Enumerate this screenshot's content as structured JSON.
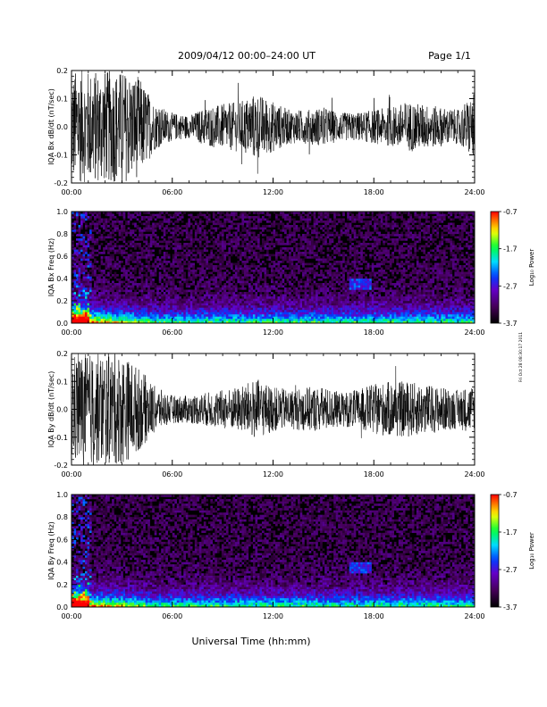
{
  "header": {
    "title": "2009/04/12  00:00–24:00 UT",
    "page": "Page 1/1"
  },
  "xaxis": {
    "label": "Universal Time (hh:mm)",
    "ticks": [
      "00:00",
      "06:00",
      "12:00",
      "18:00",
      "24:00"
    ]
  },
  "side_stamp": "Fri Oct 28 08:30:17 2011",
  "colorbar": {
    "label": "Log₁₀ Power",
    "ticks": [
      "-0.7",
      "-1.7",
      "-2.7",
      "-3.7"
    ]
  },
  "chart_data": [
    {
      "type": "line",
      "ylabel": "IQA Bx dB/dt (nT/sec)",
      "xlim": [
        0,
        24
      ],
      "ylim": [
        -0.2,
        0.2
      ],
      "yticks": [
        "0.2",
        "0.1",
        "0.0",
        "-0.1",
        "-0.2"
      ],
      "amplitude_envelope": {
        "x_hours": [
          0,
          1,
          2,
          3,
          4,
          5,
          6,
          7,
          8,
          9,
          10,
          11,
          12,
          13,
          14,
          15,
          16,
          17,
          18,
          19,
          20,
          21,
          22,
          23,
          24
        ],
        "abs_max": [
          0.2,
          0.2,
          0.2,
          0.2,
          0.18,
          0.08,
          0.05,
          0.04,
          0.07,
          0.08,
          0.09,
          0.12,
          0.09,
          0.06,
          0.06,
          0.07,
          0.05,
          0.05,
          0.06,
          0.07,
          0.09,
          0.08,
          0.07,
          0.06,
          0.12
        ]
      }
    },
    {
      "type": "heatmap",
      "ylabel": "IQA Bx Freq (Hz)",
      "xlim": [
        0,
        24
      ],
      "ylim": [
        0.0,
        1.0
      ],
      "yticks": [
        "1.0",
        "0.8",
        "0.6",
        "0.4",
        "0.2",
        "0.0"
      ],
      "zlim": [
        -3.7,
        -0.7
      ],
      "zlabel": "Log₁₀ Power"
    },
    {
      "type": "line",
      "ylabel": "IQA By dB/dt (nT/sec)",
      "xlim": [
        0,
        24
      ],
      "ylim": [
        -0.2,
        0.2
      ],
      "yticks": [
        "0.2",
        "0.1",
        "0.0",
        "-0.1",
        "-0.2"
      ],
      "amplitude_envelope": {
        "x_hours": [
          0,
          1,
          2,
          3,
          4,
          5,
          6,
          7,
          8,
          9,
          10,
          11,
          12,
          13,
          14,
          15,
          16,
          17,
          18,
          19,
          20,
          21,
          22,
          23,
          24
        ],
        "abs_max": [
          0.2,
          0.2,
          0.2,
          0.2,
          0.15,
          0.08,
          0.05,
          0.05,
          0.06,
          0.07,
          0.08,
          0.11,
          0.08,
          0.07,
          0.08,
          0.08,
          0.06,
          0.07,
          0.09,
          0.1,
          0.1,
          0.09,
          0.08,
          0.07,
          0.09
        ]
      }
    },
    {
      "type": "heatmap",
      "ylabel": "IQA By Freq (Hz)",
      "xlim": [
        0,
        24
      ],
      "ylim": [
        0.0,
        1.0
      ],
      "yticks": [
        "1.0",
        "0.8",
        "0.6",
        "0.4",
        "0.2",
        "0.0"
      ],
      "zlim": [
        -3.7,
        -0.7
      ],
      "zlabel": "Log₁₀ Power"
    }
  ]
}
